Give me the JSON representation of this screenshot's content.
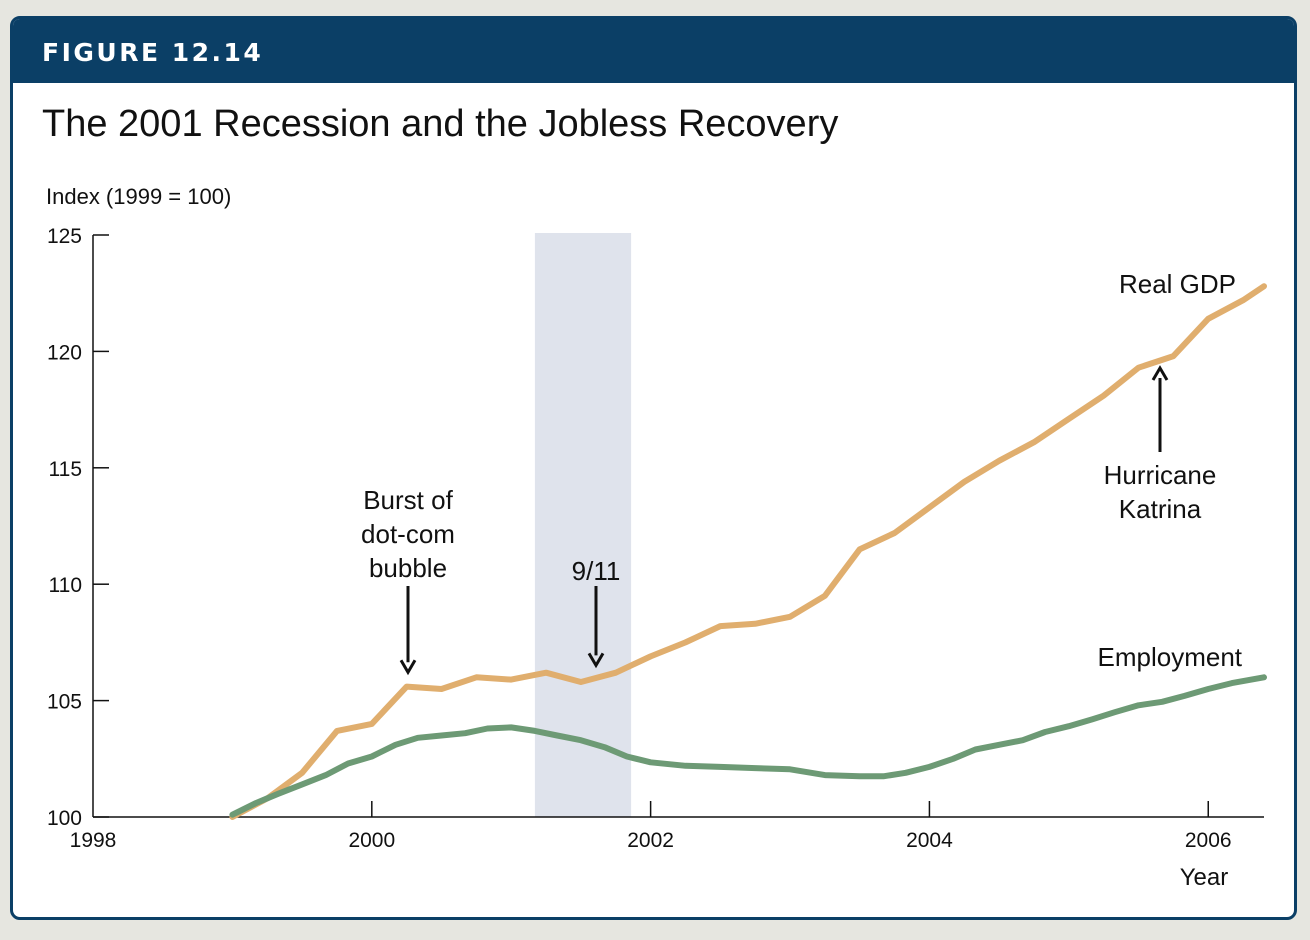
{
  "header": {
    "figure_label": "FIGURE 12.14",
    "title": "The 2001 Recession and the Jobless Recovery"
  },
  "chart_data": {
    "type": "line",
    "ylabel": "Index (1999 = 100)",
    "xlabel": "Year",
    "xlim": [
      1998,
      2006.4
    ],
    "ylim": [
      100,
      125
    ],
    "x_ticks": [
      1998,
      2000,
      2002,
      2004,
      2006
    ],
    "y_ticks": [
      100,
      105,
      110,
      115,
      120,
      125
    ],
    "recession_shading": {
      "start": 2001.17,
      "end": 2001.86
    },
    "series": [
      {
        "name": "Real GDP",
        "color": "#e0ae6e",
        "label_text": "Real GDP",
        "points": [
          [
            1999.0,
            100.0
          ],
          [
            1999.25,
            100.8
          ],
          [
            1999.5,
            101.9
          ],
          [
            1999.75,
            103.7
          ],
          [
            2000.0,
            104.0
          ],
          [
            2000.25,
            105.6
          ],
          [
            2000.5,
            105.5
          ],
          [
            2000.75,
            106.0
          ],
          [
            2001.0,
            105.9
          ],
          [
            2001.25,
            106.2
          ],
          [
            2001.5,
            105.8
          ],
          [
            2001.75,
            106.2
          ],
          [
            2002.0,
            106.9
          ],
          [
            2002.25,
            107.5
          ],
          [
            2002.5,
            108.2
          ],
          [
            2002.75,
            108.3
          ],
          [
            2003.0,
            108.6
          ],
          [
            2003.25,
            109.5
          ],
          [
            2003.5,
            111.5
          ],
          [
            2003.75,
            112.2
          ],
          [
            2004.0,
            113.3
          ],
          [
            2004.25,
            114.4
          ],
          [
            2004.5,
            115.3
          ],
          [
            2004.75,
            116.1
          ],
          [
            2005.0,
            117.1
          ],
          [
            2005.25,
            118.1
          ],
          [
            2005.5,
            119.3
          ],
          [
            2005.75,
            119.8
          ],
          [
            2006.0,
            121.4
          ],
          [
            2006.25,
            122.2
          ],
          [
            2006.4,
            122.8
          ]
        ]
      },
      {
        "name": "Employment",
        "color": "#6d9a75",
        "label_text": "Employment",
        "points": [
          [
            1999.0,
            100.1
          ],
          [
            1999.17,
            100.6
          ],
          [
            1999.33,
            101.0
          ],
          [
            1999.5,
            101.4
          ],
          [
            1999.67,
            101.8
          ],
          [
            1999.83,
            102.3
          ],
          [
            2000.0,
            102.6
          ],
          [
            2000.17,
            103.1
          ],
          [
            2000.33,
            103.4
          ],
          [
            2000.5,
            103.5
          ],
          [
            2000.67,
            103.6
          ],
          [
            2000.83,
            103.8
          ],
          [
            2001.0,
            103.85
          ],
          [
            2001.17,
            103.7
          ],
          [
            2001.33,
            103.5
          ],
          [
            2001.5,
            103.3
          ],
          [
            2001.67,
            103.0
          ],
          [
            2001.83,
            102.6
          ],
          [
            2002.0,
            102.35
          ],
          [
            2002.25,
            102.2
          ],
          [
            2002.5,
            102.15
          ],
          [
            2002.75,
            102.1
          ],
          [
            2003.0,
            102.05
          ],
          [
            2003.25,
            101.8
          ],
          [
            2003.5,
            101.75
          ],
          [
            2003.67,
            101.75
          ],
          [
            2003.83,
            101.9
          ],
          [
            2004.0,
            102.15
          ],
          [
            2004.17,
            102.5
          ],
          [
            2004.33,
            102.9
          ],
          [
            2004.5,
            103.1
          ],
          [
            2004.67,
            103.3
          ],
          [
            2004.83,
            103.65
          ],
          [
            2005.0,
            103.9
          ],
          [
            2005.17,
            104.2
          ],
          [
            2005.33,
            104.5
          ],
          [
            2005.5,
            104.8
          ],
          [
            2005.67,
            104.95
          ],
          [
            2005.83,
            105.2
          ],
          [
            2006.0,
            105.5
          ],
          [
            2006.17,
            105.75
          ],
          [
            2006.4,
            106.0
          ]
        ]
      }
    ],
    "annotations": [
      {
        "text_lines": [
          "Burst of",
          "dot-com",
          "bubble"
        ],
        "arrow_to": [
          2000.27,
          105.7
        ]
      },
      {
        "text_lines": [
          "9/11"
        ],
        "arrow_to": [
          2001.67,
          106.0
        ]
      },
      {
        "text_lines": [
          "Hurricane",
          "Katrina"
        ],
        "arrow_to": [
          2005.67,
          119.8
        ]
      }
    ]
  }
}
